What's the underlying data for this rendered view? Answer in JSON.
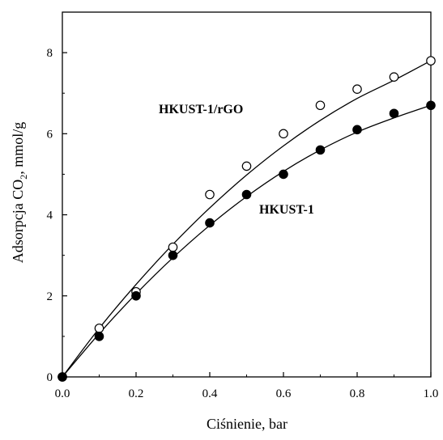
{
  "chart_data": {
    "type": "scatter",
    "xlabel": "Ciśnienie, bar",
    "ylabel_parts": {
      "before": "Adsorpcja CO",
      "subscript": "2",
      "after": ", mmol/g"
    },
    "xlim": [
      0,
      1.0
    ],
    "ylim": [
      0,
      9
    ],
    "xticks": [
      "0.0",
      "0.2",
      "0.4",
      "0.6",
      "0.8",
      "1.0"
    ],
    "yticks": [
      "0",
      "2",
      "4",
      "6",
      "8"
    ],
    "grid": false,
    "series": [
      {
        "name": "HKUST-1/rGO",
        "marker": "open-circle",
        "color": "#000000",
        "points": [
          [
            0.0,
            0.0
          ],
          [
            0.1,
            1.2
          ],
          [
            0.2,
            2.1
          ],
          [
            0.3,
            3.2
          ],
          [
            0.4,
            4.5
          ],
          [
            0.5,
            5.2
          ],
          [
            0.6,
            6.0
          ],
          [
            0.7,
            6.7
          ],
          [
            0.8,
            7.1
          ],
          [
            0.9,
            7.4
          ],
          [
            1.0,
            7.8
          ]
        ],
        "fit": [
          [
            0.0,
            0.0
          ],
          [
            0.1,
            1.2
          ],
          [
            0.2,
            2.28
          ],
          [
            0.3,
            3.27
          ],
          [
            0.4,
            4.17
          ],
          [
            0.5,
            4.98
          ],
          [
            0.6,
            5.7
          ],
          [
            0.7,
            6.33
          ],
          [
            0.8,
            6.87
          ],
          [
            0.9,
            7.32
          ],
          [
            1.0,
            7.8
          ]
        ]
      },
      {
        "name": "HKUST-1",
        "marker": "filled-circle",
        "color": "#000000",
        "points": [
          [
            0.0,
            0.0
          ],
          [
            0.1,
            1.0
          ],
          [
            0.2,
            2.0
          ],
          [
            0.3,
            3.0
          ],
          [
            0.4,
            3.8
          ],
          [
            0.5,
            4.5
          ],
          [
            0.6,
            5.0
          ],
          [
            0.7,
            5.6
          ],
          [
            0.8,
            6.1
          ],
          [
            0.9,
            6.5
          ],
          [
            1.0,
            6.7
          ]
        ],
        "fit": [
          [
            0.0,
            0.0
          ],
          [
            0.1,
            1.07
          ],
          [
            0.2,
            2.05
          ],
          [
            0.3,
            2.94
          ],
          [
            0.4,
            3.74
          ],
          [
            0.5,
            4.45
          ],
          [
            0.6,
            5.07
          ],
          [
            0.7,
            5.6
          ],
          [
            0.8,
            6.04
          ],
          [
            0.9,
            6.39
          ],
          [
            1.0,
            6.7
          ]
        ]
      }
    ]
  }
}
